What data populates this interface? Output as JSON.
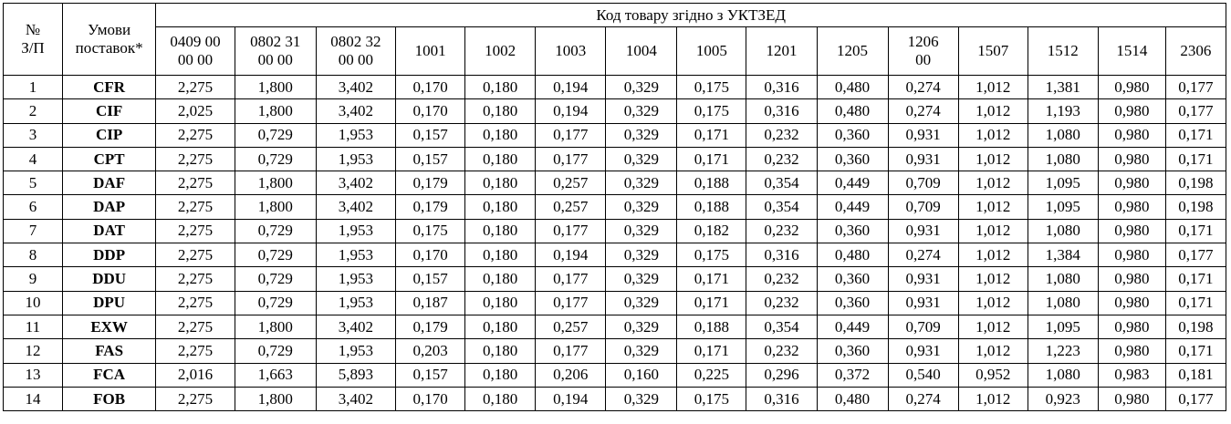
{
  "header": {
    "num": "№\nЗ/П",
    "terms": "Умови\nпоставок*",
    "group": "Код товару згідно з УКТЗЕД",
    "codes": [
      "0409 00\n00 00",
      "0802 31\n00 00",
      "0802 32\n00 00",
      "1001",
      "1002",
      "1003",
      "1004",
      "1005",
      "1201",
      "1205",
      "1206\n00",
      "1507",
      "1512",
      "1514",
      "2306"
    ]
  },
  "rows": [
    {
      "n": "1",
      "term": "CFR",
      "v": [
        "2,275",
        "1,800",
        "3,402",
        "0,170",
        "0,180",
        "0,194",
        "0,329",
        "0,175",
        "0,316",
        "0,480",
        "0,274",
        "1,012",
        "1,381",
        "0,980",
        "0,177"
      ]
    },
    {
      "n": "2",
      "term": "CIF",
      "v": [
        "2,025",
        "1,800",
        "3,402",
        "0,170",
        "0,180",
        "0,194",
        "0,329",
        "0,175",
        "0,316",
        "0,480",
        "0,274",
        "1,012",
        "1,193",
        "0,980",
        "0,177"
      ]
    },
    {
      "n": "3",
      "term": "CIP",
      "v": [
        "2,275",
        "0,729",
        "1,953",
        "0,157",
        "0,180",
        "0,177",
        "0,329",
        "0,171",
        "0,232",
        "0,360",
        "0,931",
        "1,012",
        "1,080",
        "0,980",
        "0,171"
      ]
    },
    {
      "n": "4",
      "term": "CPT",
      "v": [
        "2,275",
        "0,729",
        "1,953",
        "0,157",
        "0,180",
        "0,177",
        "0,329",
        "0,171",
        "0,232",
        "0,360",
        "0,931",
        "1,012",
        "1,080",
        "0,980",
        "0,171"
      ]
    },
    {
      "n": "5",
      "term": "DAF",
      "v": [
        "2,275",
        "1,800",
        "3,402",
        "0,179",
        "0,180",
        "0,257",
        "0,329",
        "0,188",
        "0,354",
        "0,449",
        "0,709",
        "1,012",
        "1,095",
        "0,980",
        "0,198"
      ]
    },
    {
      "n": "6",
      "term": "DAP",
      "v": [
        "2,275",
        "1,800",
        "3,402",
        "0,179",
        "0,180",
        "0,257",
        "0,329",
        "0,188",
        "0,354",
        "0,449",
        "0,709",
        "1,012",
        "1,095",
        "0,980",
        "0,198"
      ]
    },
    {
      "n": "7",
      "term": "DAT",
      "v": [
        "2,275",
        "0,729",
        "1,953",
        "0,175",
        "0,180",
        "0,177",
        "0,329",
        "0,182",
        "0,232",
        "0,360",
        "0,931",
        "1,012",
        "1,080",
        "0,980",
        "0,171"
      ]
    },
    {
      "n": "8",
      "term": "DDP",
      "v": [
        "2,275",
        "0,729",
        "1,953",
        "0,170",
        "0,180",
        "0,194",
        "0,329",
        "0,175",
        "0,316",
        "0,480",
        "0,274",
        "1,012",
        "1,384",
        "0,980",
        "0,177"
      ]
    },
    {
      "n": "9",
      "term": "DDU",
      "v": [
        "2,275",
        "0,729",
        "1,953",
        "0,157",
        "0,180",
        "0,177",
        "0,329",
        "0,171",
        "0,232",
        "0,360",
        "0,931",
        "1,012",
        "1,080",
        "0,980",
        "0,171"
      ]
    },
    {
      "n": "10",
      "term": "DPU",
      "v": [
        "2,275",
        "0,729",
        "1,953",
        "0,187",
        "0,180",
        "0,177",
        "0,329",
        "0,171",
        "0,232",
        "0,360",
        "0,931",
        "1,012",
        "1,080",
        "0,980",
        "0,171"
      ]
    },
    {
      "n": "11",
      "term": "EXW",
      "v": [
        "2,275",
        "1,800",
        "3,402",
        "0,179",
        "0,180",
        "0,257",
        "0,329",
        "0,188",
        "0,354",
        "0,449",
        "0,709",
        "1,012",
        "1,095",
        "0,980",
        "0,198"
      ]
    },
    {
      "n": "12",
      "term": "FAS",
      "v": [
        "2,275",
        "0,729",
        "1,953",
        "0,203",
        "0,180",
        "0,177",
        "0,329",
        "0,171",
        "0,232",
        "0,360",
        "0,931",
        "1,012",
        "1,223",
        "0,980",
        "0,171"
      ]
    },
    {
      "n": "13",
      "term": "FCA",
      "v": [
        "2,016",
        "1,663",
        "5,893",
        "0,157",
        "0,180",
        "0,206",
        "0,160",
        "0,225",
        "0,296",
        "0,372",
        "0,540",
        "0,952",
        "1,080",
        "0,983",
        "0,181"
      ]
    },
    {
      "n": "14",
      "term": "FOB",
      "v": [
        "2,275",
        "1,800",
        "3,402",
        "0,170",
        "0,180",
        "0,194",
        "0,329",
        "0,175",
        "0,316",
        "0,480",
        "0,274",
        "1,012",
        "0,923",
        "0,980",
        "0,177"
      ]
    }
  ]
}
